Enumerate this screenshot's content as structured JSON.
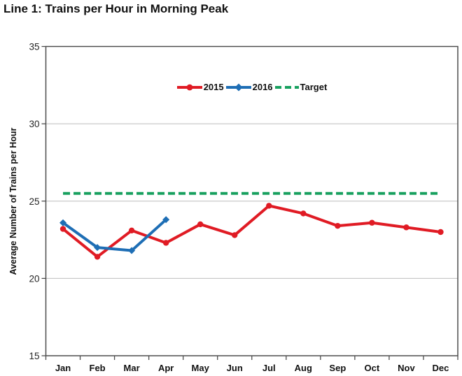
{
  "title": "Line 1: Trains per Hour in Morning Peak",
  "chart_data": {
    "type": "line",
    "title": "Line 1: Trains per Hour in Morning Peak",
    "xlabel": "",
    "ylabel": "Average Number of Trains per Hour",
    "categories": [
      "Jan",
      "Feb",
      "Mar",
      "Apr",
      "May",
      "Jun",
      "Jul",
      "Aug",
      "Sep",
      "Oct",
      "Nov",
      "Dec"
    ],
    "ylim": [
      15,
      35
    ],
    "yticks": [
      15,
      20,
      25,
      30,
      35
    ],
    "gridlines": [
      20,
      25,
      30
    ],
    "legend_position": "top-center-inside",
    "series": [
      {
        "name": "2015",
        "color": "#e01b24",
        "style": "solid",
        "marker": "circle",
        "values": [
          23.2,
          21.4,
          23.1,
          22.3,
          23.5,
          22.8,
          24.7,
          24.2,
          23.4,
          23.6,
          23.3,
          23.0
        ]
      },
      {
        "name": "2016",
        "color": "#1e6eb5",
        "style": "solid",
        "marker": "diamond",
        "values": [
          23.6,
          22.0,
          21.8,
          23.8
        ]
      },
      {
        "name": "Target",
        "color": "#18a05f",
        "style": "dashed",
        "marker": "none",
        "values": [
          25.5,
          25.5,
          25.5,
          25.5,
          25.5,
          25.5,
          25.5,
          25.5,
          25.5,
          25.5,
          25.5,
          25.5
        ]
      }
    ],
    "colors": {
      "grid": "#c9c9c9",
      "plot_border": "#4d4d4d",
      "text": "#111111"
    }
  }
}
